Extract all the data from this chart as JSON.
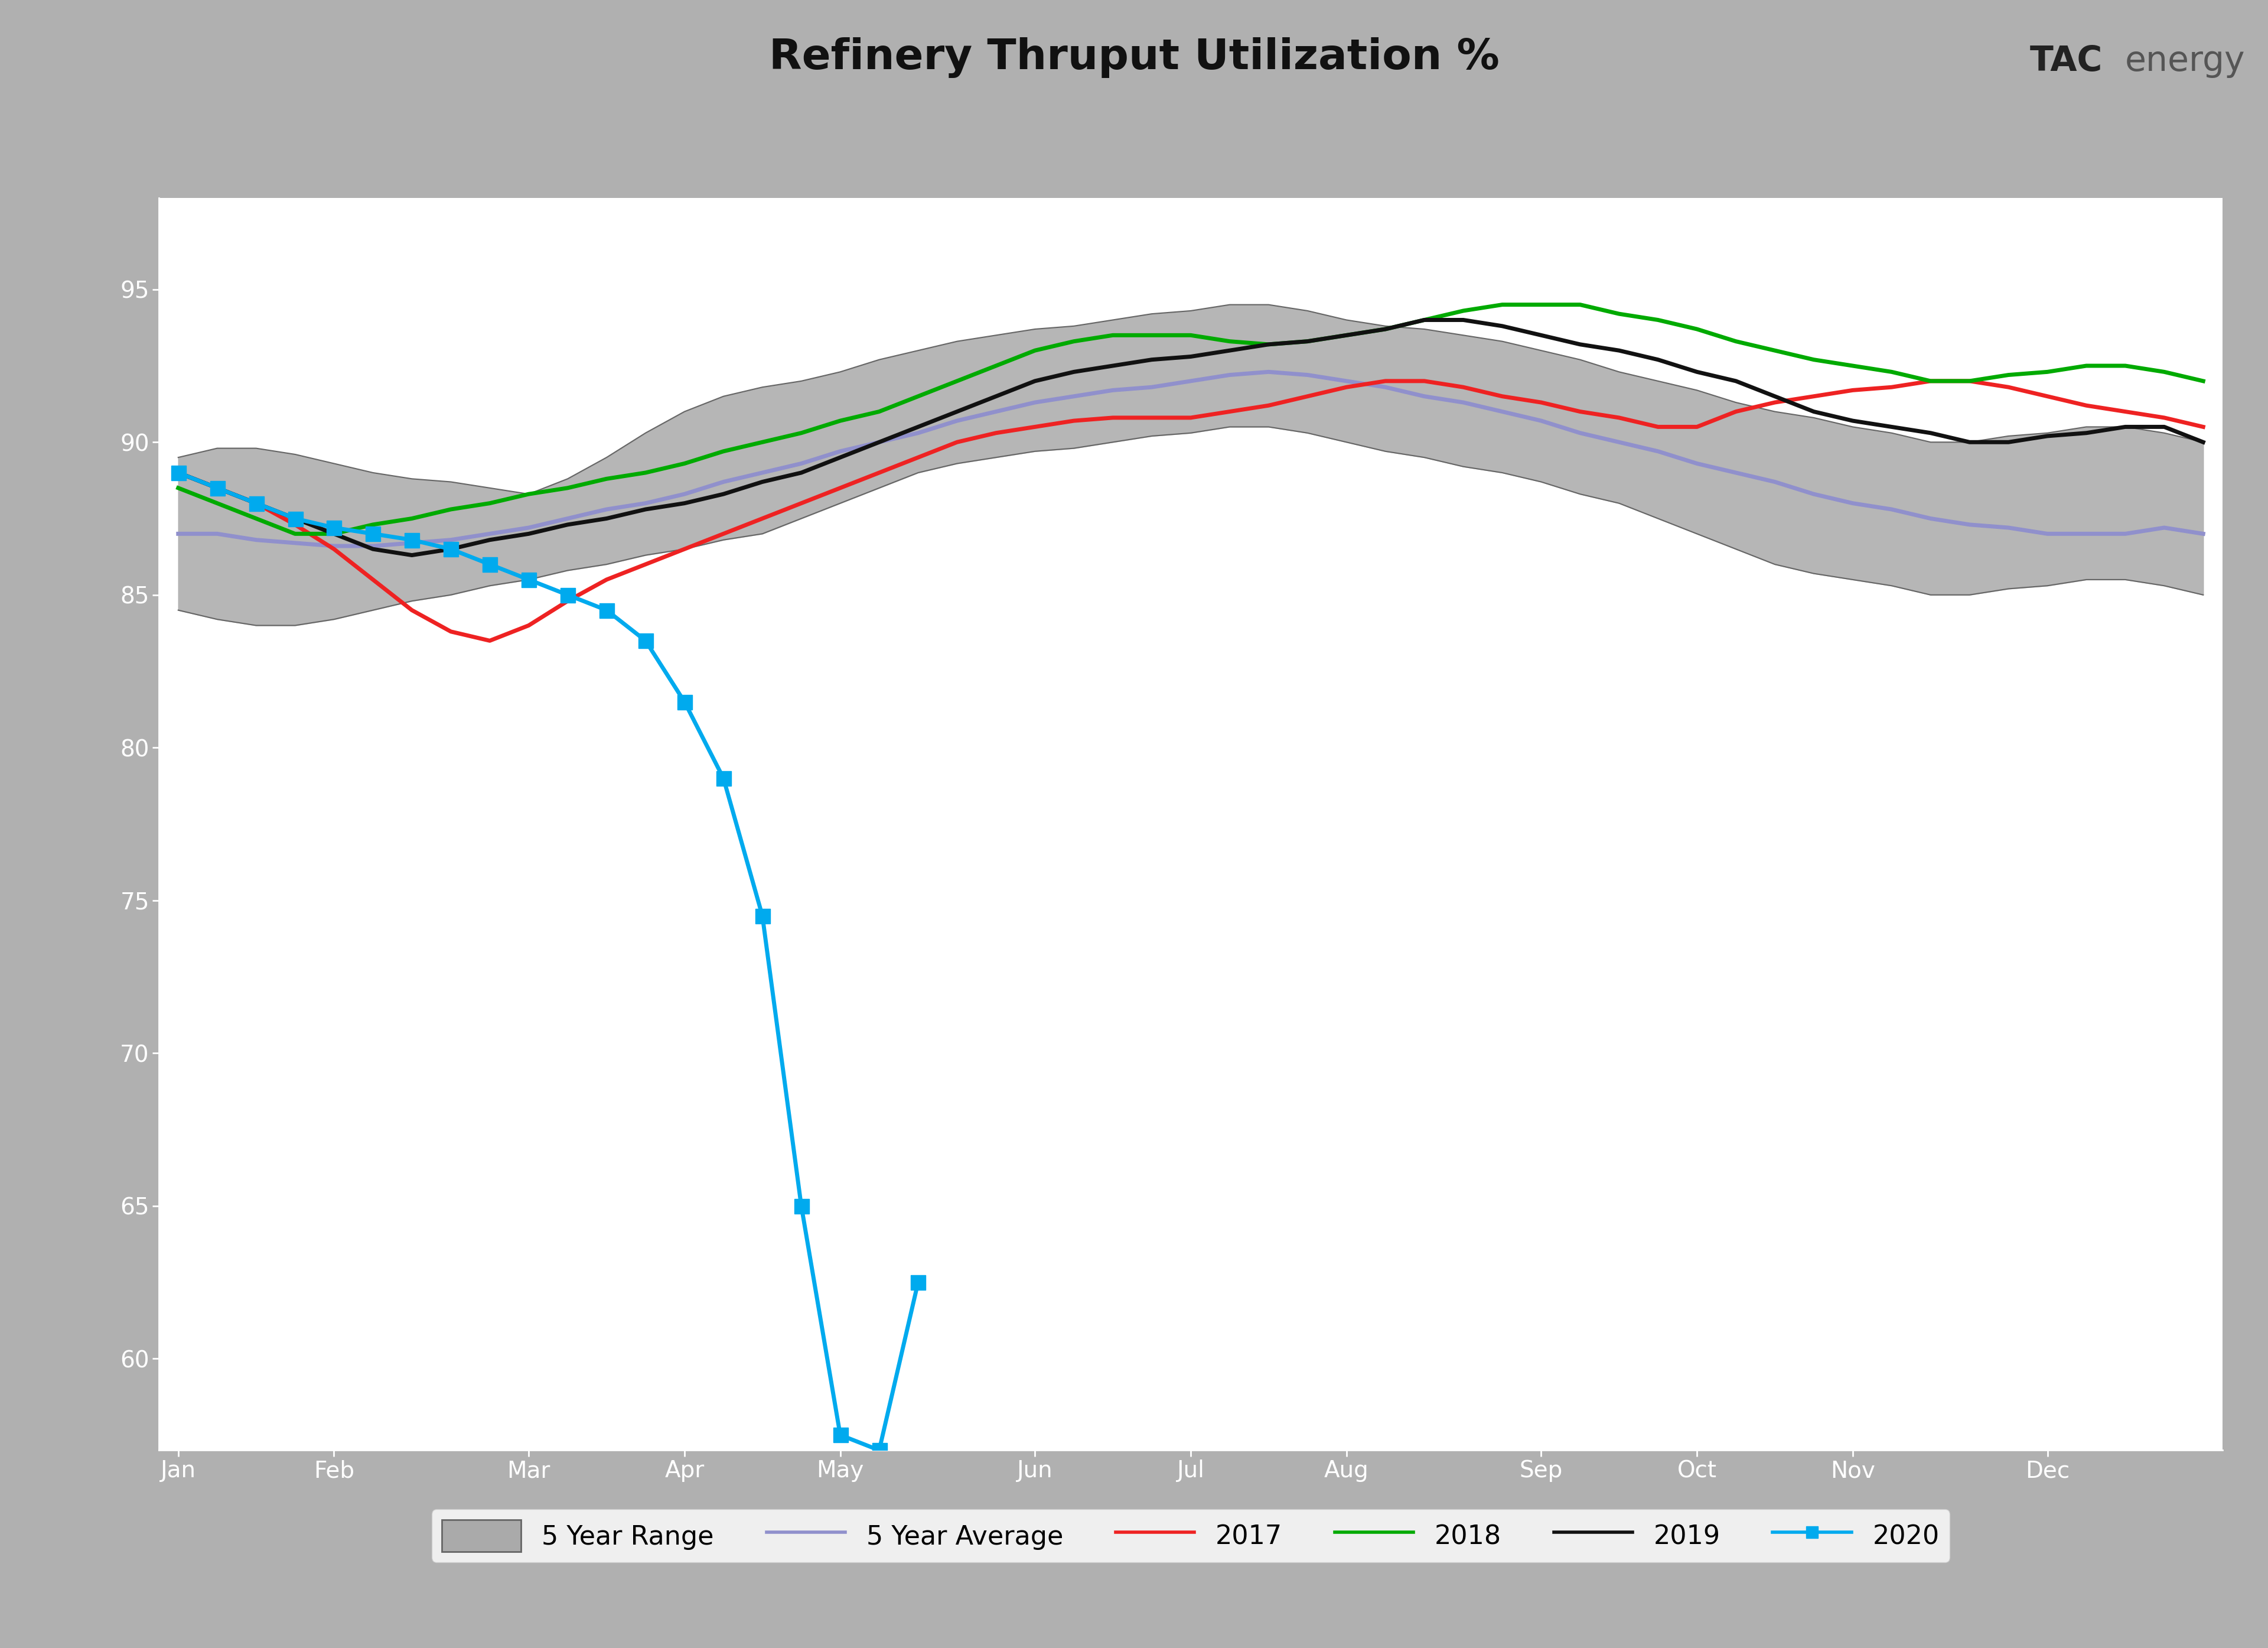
{
  "title": "Refinery Thruput Utilization %",
  "title_fontsize": 52,
  "header_bg_color": "#b0b0b0",
  "blue_bar_color": "#1560a8",
  "plot_bg_color": "#ffffff",
  "outer_bg_color": "#000000",
  "range_color": "#aaaaaa",
  "range_edge_color": "#666666",
  "range_alpha": 0.85,
  "avg_color": "#9090cc",
  "y2017_color": "#ee2222",
  "y2018_color": "#00aa00",
  "y2019_color": "#111111",
  "y2020_color": "#00aaee",
  "line_width": 5,
  "marker_2020": "s",
  "marker_size": 18,
  "x_labels": [
    "Jan",
    "Feb",
    "Mar",
    "Apr",
    "May",
    "Jun",
    "Jul",
    "Aug",
    "Sep",
    "Oct",
    "Nov",
    "Dec"
  ],
  "ylim_low": 57,
  "ylim_high": 98,
  "ytick_vals": [
    60,
    65,
    70,
    75,
    80,
    85,
    90,
    95
  ],
  "grid_color": "#ffffff",
  "legend_fontsize": 32,
  "tick_fontsize": 28,
  "n_weeks": 53,
  "range_high_w": [
    89.5,
    89.8,
    89.8,
    89.6,
    89.3,
    89.0,
    88.8,
    88.7,
    88.5,
    88.3,
    88.8,
    89.5,
    90.3,
    91.0,
    91.5,
    91.8,
    92.0,
    92.3,
    92.7,
    93.0,
    93.3,
    93.5,
    93.7,
    93.8,
    94.0,
    94.2,
    94.3,
    94.5,
    94.5,
    94.3,
    94.0,
    93.8,
    93.7,
    93.5,
    93.3,
    93.0,
    92.7,
    92.3,
    92.0,
    91.7,
    91.3,
    91.0,
    90.8,
    90.5,
    90.3,
    90.0,
    90.0,
    90.2,
    90.3,
    90.5,
    90.5,
    90.3,
    90.0
  ],
  "range_low_w": [
    84.5,
    84.2,
    84.0,
    84.0,
    84.2,
    84.5,
    84.8,
    85.0,
    85.3,
    85.5,
    85.8,
    86.0,
    86.3,
    86.5,
    86.8,
    87.0,
    87.5,
    88.0,
    88.5,
    89.0,
    89.3,
    89.5,
    89.7,
    89.8,
    90.0,
    90.2,
    90.3,
    90.5,
    90.5,
    90.3,
    90.0,
    89.7,
    89.5,
    89.2,
    89.0,
    88.7,
    88.3,
    88.0,
    87.5,
    87.0,
    86.5,
    86.0,
    85.7,
    85.5,
    85.3,
    85.0,
    85.0,
    85.2,
    85.3,
    85.5,
    85.5,
    85.3,
    85.0
  ],
  "avg_w": [
    87.0,
    87.0,
    86.8,
    86.7,
    86.6,
    86.6,
    86.7,
    86.8,
    87.0,
    87.2,
    87.5,
    87.8,
    88.0,
    88.3,
    88.7,
    89.0,
    89.3,
    89.7,
    90.0,
    90.3,
    90.7,
    91.0,
    91.3,
    91.5,
    91.7,
    91.8,
    92.0,
    92.2,
    92.3,
    92.2,
    92.0,
    91.8,
    91.5,
    91.3,
    91.0,
    90.7,
    90.3,
    90.0,
    89.7,
    89.3,
    89.0,
    88.7,
    88.3,
    88.0,
    87.8,
    87.5,
    87.3,
    87.2,
    87.0,
    87.0,
    87.0,
    87.2,
    87.0
  ],
  "y2017_w": [
    89.0,
    88.5,
    88.0,
    87.3,
    86.5,
    85.5,
    84.5,
    83.8,
    83.5,
    84.0,
    84.8,
    85.5,
    86.0,
    86.5,
    87.0,
    87.5,
    88.0,
    88.5,
    89.0,
    89.5,
    90.0,
    90.3,
    90.5,
    90.7,
    90.8,
    90.8,
    90.8,
    91.0,
    91.2,
    91.5,
    91.8,
    92.0,
    92.0,
    91.8,
    91.5,
    91.3,
    91.0,
    90.8,
    90.5,
    90.5,
    91.0,
    91.3,
    91.5,
    91.7,
    91.8,
    92.0,
    92.0,
    91.8,
    91.5,
    91.2,
    91.0,
    90.8,
    90.5
  ],
  "y2018_w": [
    88.5,
    88.0,
    87.5,
    87.0,
    87.0,
    87.3,
    87.5,
    87.8,
    88.0,
    88.3,
    88.5,
    88.8,
    89.0,
    89.3,
    89.7,
    90.0,
    90.3,
    90.7,
    91.0,
    91.5,
    92.0,
    92.5,
    93.0,
    93.3,
    93.5,
    93.5,
    93.5,
    93.3,
    93.2,
    93.3,
    93.5,
    93.7,
    94.0,
    94.3,
    94.5,
    94.5,
    94.5,
    94.2,
    94.0,
    93.7,
    93.3,
    93.0,
    92.7,
    92.5,
    92.3,
    92.0,
    92.0,
    92.2,
    92.3,
    92.5,
    92.5,
    92.3,
    92.0
  ],
  "y2019_w": [
    89.0,
    88.5,
    88.0,
    87.5,
    87.0,
    86.5,
    86.3,
    86.5,
    86.8,
    87.0,
    87.3,
    87.5,
    87.8,
    88.0,
    88.3,
    88.7,
    89.0,
    89.5,
    90.0,
    90.5,
    91.0,
    91.5,
    92.0,
    92.3,
    92.5,
    92.7,
    92.8,
    93.0,
    93.2,
    93.3,
    93.5,
    93.7,
    94.0,
    94.0,
    93.8,
    93.5,
    93.2,
    93.0,
    92.7,
    92.3,
    92.0,
    91.5,
    91.0,
    90.7,
    90.5,
    90.3,
    90.0,
    90.0,
    90.2,
    90.3,
    90.5,
    90.5,
    90.0
  ],
  "x2020": [
    0,
    1,
    2,
    3,
    4,
    5,
    6,
    7,
    8,
    9,
    10,
    11,
    12,
    13,
    14,
    15,
    16,
    17,
    18,
    19
  ],
  "y2020": [
    89.0,
    88.5,
    88.0,
    87.5,
    87.2,
    87.0,
    86.8,
    86.5,
    86.0,
    85.5,
    85.0,
    84.5,
    83.5,
    81.5,
    79.0,
    74.5,
    65.0,
    57.5,
    57.0,
    62.5
  ]
}
